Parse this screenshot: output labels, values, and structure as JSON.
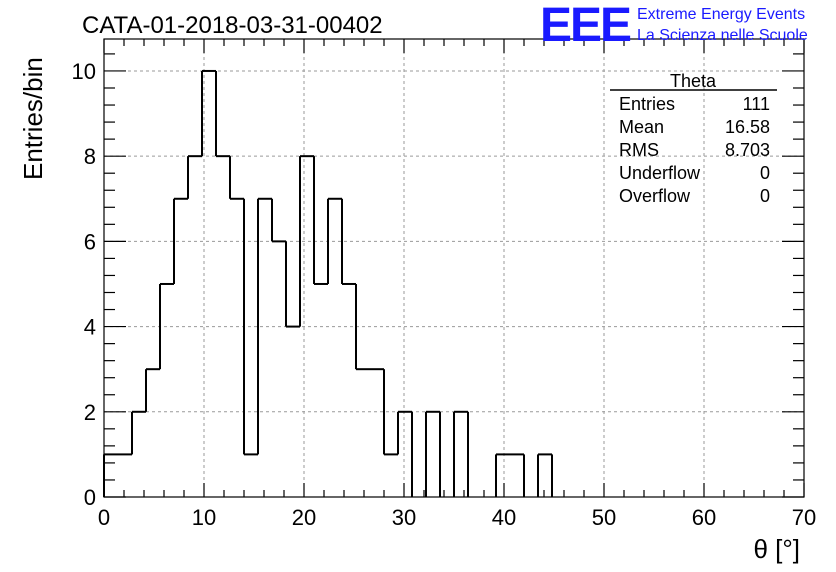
{
  "chart_data": {
    "type": "bar",
    "title": "CATA-01-2018-03-31-00402",
    "xlabel": "θ [°]",
    "ylabel": "Entries/bin",
    "xlim": [
      0,
      70
    ],
    "ylim": [
      0,
      10.75
    ],
    "bin_width": 1.4,
    "bin_start": 0,
    "values": [
      1,
      1,
      2,
      3,
      5,
      7,
      8,
      10,
      8,
      7,
      1,
      7,
      6,
      4,
      8,
      5,
      7,
      5,
      3,
      3,
      1,
      2,
      0,
      2,
      0,
      2,
      0,
      0,
      1,
      1,
      0,
      1,
      0,
      0,
      0,
      0,
      0,
      0,
      0,
      0,
      0,
      0,
      0,
      0,
      0,
      0,
      0,
      0,
      0,
      0
    ],
    "x_ticks": [
      "0",
      "10",
      "20",
      "30",
      "40",
      "50",
      "60",
      "70"
    ],
    "y_ticks": [
      "0",
      "2",
      "4",
      "6",
      "8",
      "10"
    ],
    "grid": true,
    "legend": "none",
    "stats_box": {
      "name": "Theta",
      "rows": [
        {
          "label": "Entries",
          "value": "111"
        },
        {
          "label": "Mean",
          "value": "16.58"
        },
        {
          "label": "RMS",
          "value": "8.703"
        },
        {
          "label": "Underflow",
          "value": "0"
        },
        {
          "label": "Overflow",
          "value": "0"
        }
      ]
    }
  },
  "logo": {
    "mark": "EEE",
    "line1": "Extreme Energy Events",
    "line2": "La Scienza nelle Scuole"
  },
  "colors": {
    "logo": "#1a1aff",
    "line": "#000000",
    "grid": "#9a9a9a"
  }
}
